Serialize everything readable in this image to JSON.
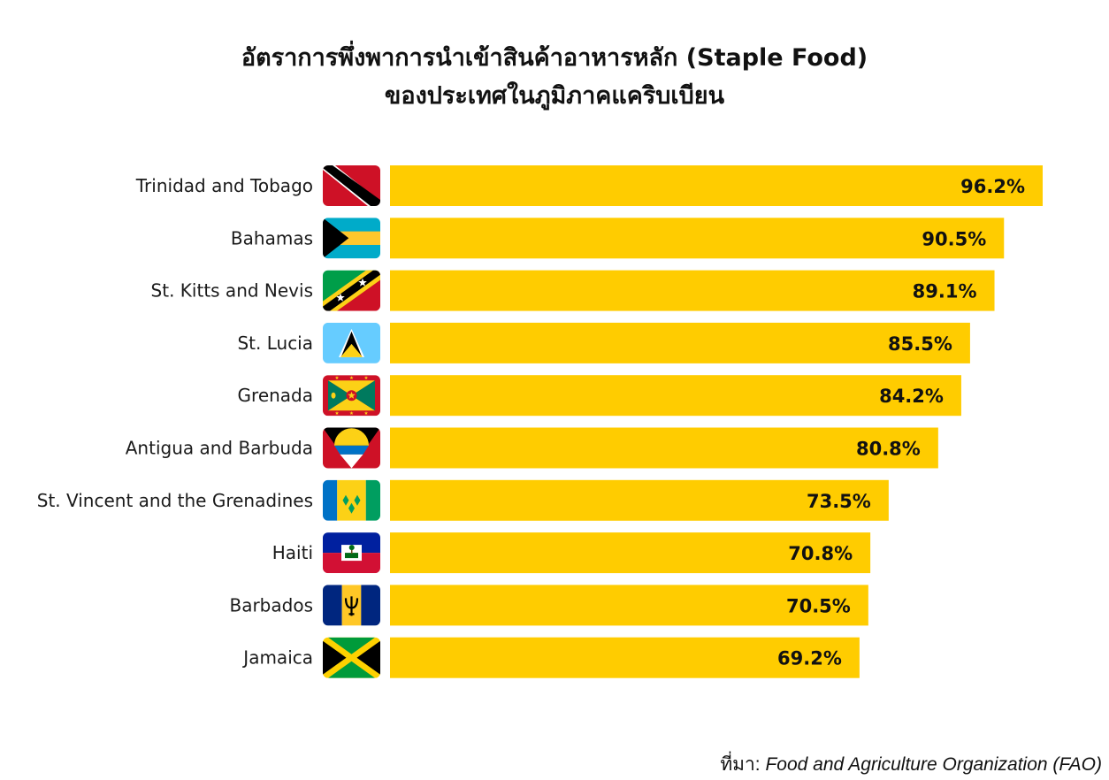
{
  "chart_data": {
    "type": "bar",
    "orientation": "horizontal",
    "title": "อัตราการพึ่งพาการนำเข้าสินค้าอาหารหลัก (Staple Food)",
    "subtitle": "ของประเทศในภูมิภาคแคริบเบียน",
    "categories": [
      "Trinidad and Tobago",
      "Bahamas",
      "St. Kitts and Nevis",
      "St. Lucia",
      "Grenada",
      "Antigua and Barbuda",
      "St. Vincent and the Grenadines",
      "Haiti",
      "Barbados",
      "Jamaica"
    ],
    "values": [
      96.2,
      90.5,
      89.1,
      85.5,
      84.2,
      80.8,
      73.5,
      70.8,
      70.5,
      69.2
    ],
    "value_labels": [
      "96.2%",
      "90.5%",
      "89.1%",
      "85.5%",
      "84.2%",
      "80.8%",
      "73.5%",
      "70.8%",
      "70.5%",
      "69.2%"
    ],
    "flags": [
      "trinidad-and-tobago",
      "bahamas",
      "st-kitts-and-nevis",
      "st-lucia",
      "grenada",
      "antigua-and-barbuda",
      "st-vincent-and-the-grenadines",
      "haiti",
      "barbados",
      "jamaica"
    ],
    "xlim": [
      0,
      100
    ],
    "bar_color": "#FFCC00",
    "xlabel": "",
    "ylabel": ""
  },
  "source": {
    "prefix": "ที่มา:",
    "text": "Food and Agriculture Organization (FAO)"
  }
}
